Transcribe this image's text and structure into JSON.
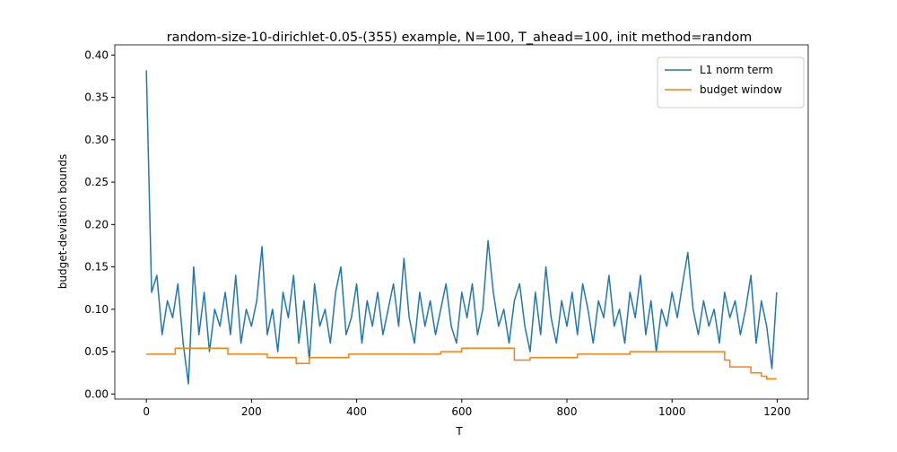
{
  "chart_data": {
    "type": "line",
    "title": "random-size-10-dirichlet-0.05-(355) example, N=100, T_ahead=100, init method=random",
    "x_label": "T",
    "y_label": "budget-deviation bounds",
    "xlim": [
      -60,
      1259
    ],
    "ylim": [
      -0.006,
      0.412
    ],
    "xticks": [
      0,
      200,
      400,
      600,
      800,
      1000,
      1200
    ],
    "yticks": [
      {
        "value": 0,
        "label": "0.00"
      },
      0.05,
      {
        "value": 0.1,
        "label": "0.10"
      },
      0.15,
      {
        "value": 0.2,
        "label": "0.20"
      },
      0.25,
      {
        "value": 0.3,
        "label": "0.30"
      },
      0.35,
      {
        "value": 0.4,
        "label": "0.40"
      }
    ],
    "legend": "upper right",
    "series": [
      {
        "name": "L1 norm term",
        "color": "#1f77b4",
        "drawstyle": "default",
        "x": [
          0,
          10,
          20,
          30,
          40,
          50,
          60,
          70,
          80,
          90,
          100,
          110,
          120,
          130,
          140,
          150,
          160,
          170,
          180,
          190,
          200,
          210,
          220,
          230,
          240,
          250,
          260,
          270,
          280,
          290,
          300,
          310,
          320,
          330,
          340,
          350,
          360,
          370,
          380,
          390,
          400,
          410,
          420,
          430,
          440,
          450,
          460,
          470,
          480,
          490,
          500,
          510,
          520,
          530,
          540,
          550,
          560,
          570,
          580,
          590,
          600,
          610,
          620,
          630,
          640,
          650,
          660,
          670,
          680,
          690,
          700,
          710,
          720,
          730,
          740,
          750,
          760,
          770,
          780,
          790,
          800,
          810,
          820,
          830,
          840,
          850,
          860,
          870,
          880,
          890,
          900,
          910,
          920,
          930,
          940,
          950,
          960,
          970,
          980,
          990,
          1000,
          1010,
          1020,
          1030,
          1040,
          1050,
          1060,
          1070,
          1080,
          1090,
          1100,
          1110,
          1120,
          1130,
          1140,
          1150,
          1160,
          1170,
          1180,
          1190,
          1199
        ],
        "values": [
          0.382,
          0.12,
          0.14,
          0.07,
          0.11,
          0.09,
          0.13,
          0.06,
          0.012,
          0.15,
          0.07,
          0.12,
          0.05,
          0.1,
          0.08,
          0.12,
          0.07,
          0.14,
          0.06,
          0.1,
          0.08,
          0.11,
          0.174,
          0.07,
          0.1,
          0.05,
          0.12,
          0.09,
          0.14,
          0.06,
          0.11,
          0.04,
          0.13,
          0.08,
          0.1,
          0.06,
          0.12,
          0.15,
          0.07,
          0.09,
          0.13,
          0.06,
          0.11,
          0.08,
          0.12,
          0.07,
          0.1,
          0.13,
          0.08,
          0.16,
          0.09,
          0.06,
          0.12,
          0.08,
          0.11,
          0.07,
          0.1,
          0.13,
          0.08,
          0.06,
          0.12,
          0.09,
          0.13,
          0.07,
          0.1,
          0.181,
          0.12,
          0.08,
          0.1,
          0.06,
          0.11,
          0.13,
          0.08,
          0.05,
          0.12,
          0.07,
          0.15,
          0.09,
          0.06,
          0.11,
          0.08,
          0.12,
          0.07,
          0.13,
          0.1,
          0.06,
          0.11,
          0.09,
          0.14,
          0.08,
          0.1,
          0.06,
          0.12,
          0.09,
          0.14,
          0.07,
          0.11,
          0.05,
          0.1,
          0.08,
          0.12,
          0.09,
          0.13,
          0.167,
          0.1,
          0.07,
          0.11,
          0.08,
          0.1,
          0.06,
          0.12,
          0.09,
          0.11,
          0.07,
          0.1,
          0.14,
          0.06,
          0.11,
          0.08,
          0.03,
          0.12
        ]
      },
      {
        "name": "budget window",
        "color": "#ff7f0e",
        "drawstyle": "steps-post",
        "x": [
          0,
          55,
          155,
          230,
          285,
          310,
          385,
          560,
          600,
          700,
          730,
          820,
          920,
          1100,
          1110,
          1150,
          1170,
          1180,
          1199
        ],
        "values": [
          0.047,
          0.054,
          0.047,
          0.043,
          0.036,
          0.043,
          0.047,
          0.05,
          0.054,
          0.04,
          0.043,
          0.047,
          0.05,
          0.04,
          0.032,
          0.025,
          0.021,
          0.018,
          0.018
        ]
      }
    ]
  }
}
